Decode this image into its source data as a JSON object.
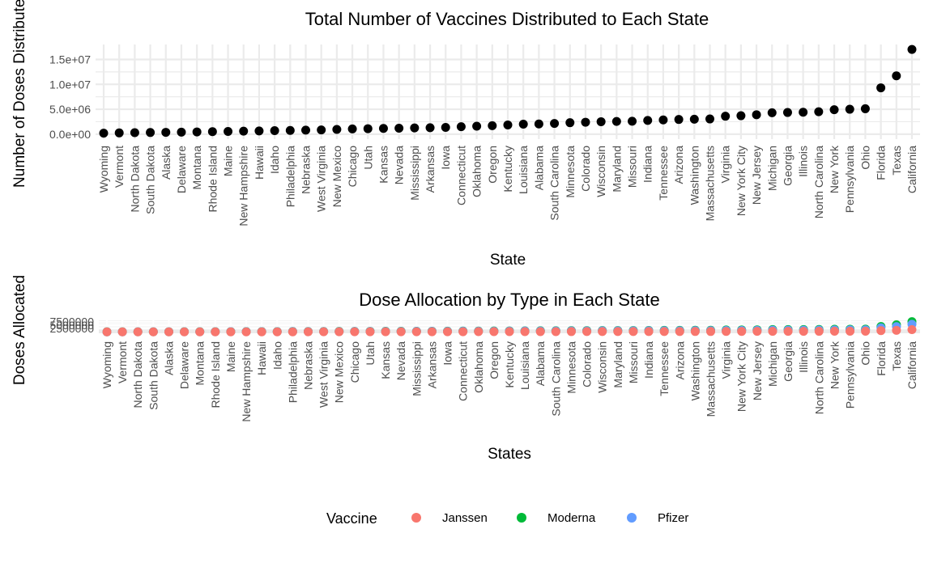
{
  "chart_data": [
    {
      "type": "scatter",
      "title": "Total Number of Vaccines Distributed to Each State",
      "xlabel": "State",
      "ylabel": "Number of Doses Distributed",
      "ylim": [
        -1000000,
        18000000
      ],
      "yticks": [
        0,
        5000000,
        10000000,
        15000000
      ],
      "ytick_labels": [
        "0.0e+00",
        "5.0e+06",
        "1.0e+07",
        "1.5e+07"
      ],
      "grid": true,
      "point_color": "#000000",
      "categories": [
        "Wyoming",
        "Vermont",
        "North Dakota",
        "South Dakota",
        "Alaska",
        "Delaware",
        "Montana",
        "Rhode Island",
        "Maine",
        "New Hampshire",
        "Hawaii",
        "Idaho",
        "Philadelphia",
        "Nebraska",
        "West Virginia",
        "New Mexico",
        "Chicago",
        "Utah",
        "Kansas",
        "Nevada",
        "Mississippi",
        "Arkansas",
        "Iowa",
        "Connecticut",
        "Oklahoma",
        "Oregon",
        "Kentucky",
        "Louisiana",
        "Alabama",
        "South Carolina",
        "Minnesota",
        "Colorado",
        "Wisconsin",
        "Maryland",
        "Missouri",
        "Indiana",
        "Tennessee",
        "Arizona",
        "Washington",
        "Massachusetts",
        "Virginia",
        "New York City",
        "New Jersey",
        "Michigan",
        "Georgia",
        "Illinois",
        "North Carolina",
        "New York",
        "Pennsylvania",
        "Ohio",
        "Florida",
        "Texas",
        "California"
      ],
      "values": [
        200000,
        250000,
        300000,
        330000,
        370000,
        400000,
        450000,
        500000,
        550000,
        600000,
        650000,
        700000,
        750000,
        800000,
        850000,
        950000,
        1050000,
        1100000,
        1150000,
        1200000,
        1250000,
        1300000,
        1350000,
        1500000,
        1600000,
        1700000,
        1850000,
        2000000,
        2050000,
        2150000,
        2300000,
        2400000,
        2500000,
        2550000,
        2600000,
        2750000,
        2850000,
        2950000,
        3000000,
        3050000,
        3600000,
        3700000,
        3900000,
        4300000,
        4350000,
        4400000,
        4500000,
        4900000,
        5000000,
        5100000,
        9300000,
        11700000,
        17000000
      ]
    },
    {
      "type": "scatter",
      "title": "Dose Allocation by Type in Each State",
      "xlabel": "States",
      "ylabel": "Doses Allocated",
      "ylim": [
        -1000000,
        8500000
      ],
      "yticks": [
        2500000,
        5000000,
        7500000
      ],
      "ytick_labels": [
        "2500000",
        "5000000",
        "7500000"
      ],
      "grid": true,
      "categories": [
        "Wyoming",
        "Vermont",
        "North Dakota",
        "South Dakota",
        "Alaska",
        "Delaware",
        "Montana",
        "Rhode Island",
        "Maine",
        "New Hampshire",
        "Hawaii",
        "Idaho",
        "Philadelphia",
        "Nebraska",
        "West Virginia",
        "New Mexico",
        "Chicago",
        "Utah",
        "Kansas",
        "Nevada",
        "Mississippi",
        "Arkansas",
        "Iowa",
        "Connecticut",
        "Oklahoma",
        "Oregon",
        "Kentucky",
        "Louisiana",
        "Alabama",
        "South Carolina",
        "Minnesota",
        "Colorado",
        "Wisconsin",
        "Maryland",
        "Missouri",
        "Indiana",
        "Tennessee",
        "Arizona",
        "Washington",
        "Massachusetts",
        "Virginia",
        "New York City",
        "New Jersey",
        "Michigan",
        "Georgia",
        "Illinois",
        "North Carolina",
        "New York",
        "Pennsylvania",
        "Ohio",
        "Florida",
        "Texas",
        "California"
      ],
      "series": [
        {
          "name": "Moderna",
          "color": "#00BA38",
          "values": [
            80000,
            100000,
            120000,
            130000,
            150000,
            160000,
            180000,
            200000,
            220000,
            240000,
            260000,
            280000,
            300000,
            320000,
            340000,
            380000,
            420000,
            440000,
            460000,
            480000,
            500000,
            520000,
            540000,
            600000,
            640000,
            680000,
            740000,
            800000,
            820000,
            860000,
            920000,
            960000,
            1000000,
            1020000,
            1040000,
            1100000,
            1140000,
            1180000,
            1200000,
            1220000,
            1440000,
            1480000,
            1560000,
            1720000,
            1740000,
            1760000,
            1800000,
            1960000,
            2000000,
            2040000,
            4000000,
            5200000,
            7500000
          ]
        },
        {
          "name": "Pfizer",
          "color": "#619CFF",
          "values": [
            60000,
            75000,
            90000,
            100000,
            110000,
            120000,
            135000,
            150000,
            165000,
            180000,
            195000,
            210000,
            225000,
            240000,
            255000,
            285000,
            315000,
            330000,
            345000,
            360000,
            375000,
            390000,
            405000,
            450000,
            480000,
            510000,
            555000,
            600000,
            615000,
            645000,
            690000,
            720000,
            750000,
            765000,
            780000,
            825000,
            855000,
            885000,
            900000,
            915000,
            1080000,
            1110000,
            1170000,
            1290000,
            1305000,
            1320000,
            1350000,
            1470000,
            1500000,
            1530000,
            3000000,
            3900000,
            5600000
          ]
        },
        {
          "name": "Janssen",
          "color": "#F8766D",
          "values": [
            20000,
            25000,
            30000,
            33000,
            37000,
            40000,
            45000,
            50000,
            55000,
            60000,
            65000,
            70000,
            75000,
            80000,
            85000,
            95000,
            105000,
            110000,
            115000,
            120000,
            125000,
            130000,
            135000,
            150000,
            160000,
            170000,
            185000,
            200000,
            205000,
            215000,
            230000,
            240000,
            250000,
            255000,
            260000,
            275000,
            285000,
            295000,
            300000,
            305000,
            360000,
            370000,
            390000,
            430000,
            435000,
            440000,
            450000,
            490000,
            500000,
            510000,
            930000,
            1170000,
            1700000
          ]
        }
      ],
      "legend": {
        "title": "Vaccine",
        "position": "bottom",
        "entries": [
          {
            "label": "Janssen",
            "color": "#F8766D"
          },
          {
            "label": "Moderna",
            "color": "#00BA38"
          },
          {
            "label": "Pfizer",
            "color": "#619CFF"
          }
        ]
      }
    }
  ]
}
